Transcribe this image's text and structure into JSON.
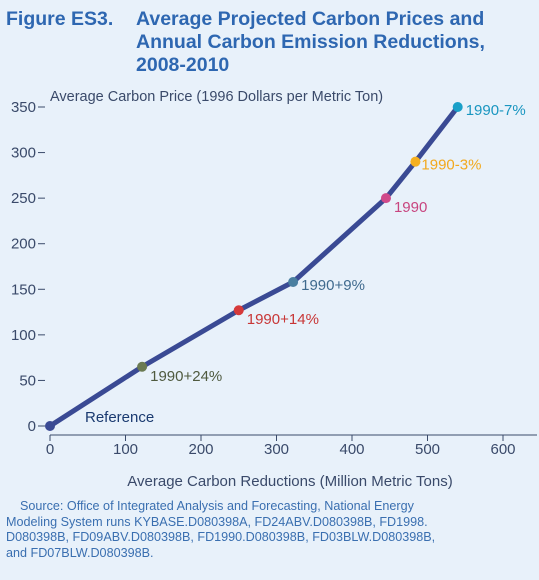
{
  "figure_label": "Figure ES3.",
  "title_lines": [
    "Average Projected Carbon Prices and",
    "Annual Carbon Emission Reductions,",
    "2008-2010"
  ],
  "source_lines": [
    "    Source: Office of Integrated Analysis and Forecasting, National Energy",
    "Modeling System runs KYBASE.D080398A, FD24ABV.D080398B, FD1998.",
    "D080398B, FD09ABV.D080398B, FD1990.D080398B, FD03BLW.D080398B,",
    "and FD07BLW.D080398B."
  ],
  "chart_data": {
    "type": "line",
    "ylabel": "Average Carbon Price (1996 Dollars per Metric Ton)",
    "xlabel": "Average Carbon Reductions (Million Metric Tons)",
    "xlim": [
      0,
      600
    ],
    "ylim": [
      0,
      350
    ],
    "xticks": [
      0,
      100,
      200,
      300,
      400,
      500,
      600
    ],
    "yticks": [
      0,
      50,
      100,
      150,
      200,
      250,
      300,
      350
    ],
    "line_color": "#3a4a94",
    "series": [
      {
        "values": [
          {
            "label": "Reference",
            "x": 0,
            "y": 0,
            "color": "#3a4a94",
            "label_color": "#1a3a70"
          },
          {
            "label": "1990+24%",
            "x": 122,
            "y": 65,
            "color": "#6a7a52",
            "label_color": "#4f5a3f"
          },
          {
            "label": "1990+14%",
            "x": 250,
            "y": 127,
            "color": "#d63a3a",
            "label_color": "#c83636"
          },
          {
            "label": "1990+9%",
            "x": 322,
            "y": 158,
            "color": "#4a7fa0",
            "label_color": "#3f6a8e"
          },
          {
            "label": "1990",
            "x": 445,
            "y": 250,
            "color": "#d04a8a",
            "label_color": "#c8457f"
          },
          {
            "label": "1990-3%",
            "x": 484,
            "y": 290,
            "color": "#f5b020",
            "label_color": "#f2a91e"
          },
          {
            "label": "1990-7%",
            "x": 540,
            "y": 350,
            "color": "#1aa0c8",
            "label_color": "#1996c0"
          }
        ]
      }
    ]
  }
}
